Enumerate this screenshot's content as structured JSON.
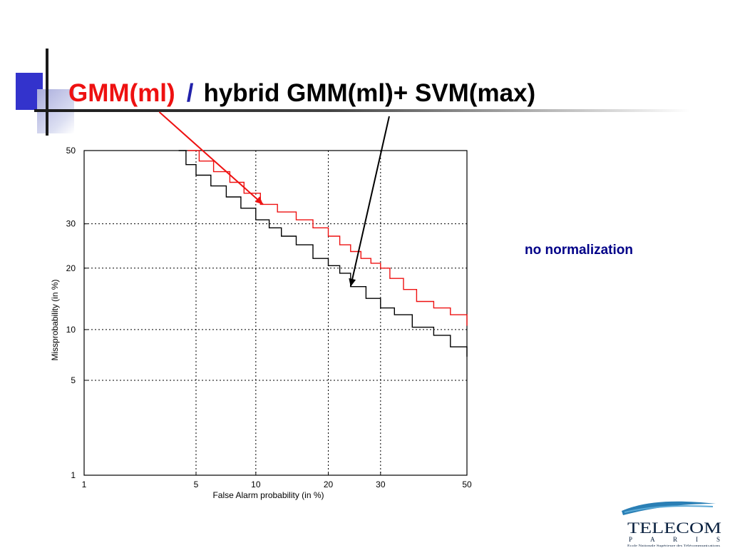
{
  "title": {
    "part1": "GMM(ml)",
    "slash": "/",
    "part2": "hybrid GMM(ml)+ SVM(max)"
  },
  "annotation": "no normalization",
  "colors": {
    "accent_blue": "#3333cc",
    "gmm_red": "#ee1111",
    "hybrid_black": "#000000",
    "note_blue": "#000088"
  },
  "logo": {
    "line1": "TELECOM",
    "line2": "P A R I S",
    "fine_print": "Ecole Nationale Supérieure des Télécommunications"
  },
  "chart_data": {
    "type": "line",
    "title": "",
    "xlabel": "False Alarm probability (in %)",
    "ylabel": "Missprobability (in %)",
    "xscale": "normal-deviate",
    "yscale": "normal-deviate",
    "xlim": [
      1,
      50
    ],
    "ylim": [
      1,
      50
    ],
    "xticks": [
      1,
      5,
      10,
      20,
      30,
      50
    ],
    "yticks": [
      1,
      5,
      10,
      20,
      30,
      50
    ],
    "grid": true,
    "series": [
      {
        "color": "#ee1111",
        "x": [
          4.5,
          5.2,
          6.2,
          7.5,
          8.8,
          10.5,
          12.5,
          15,
          17.5,
          20,
          22,
          24,
          26,
          28,
          30,
          32,
          35,
          38,
          42,
          46,
          50
        ],
        "y": [
          50,
          47,
          44,
          41,
          38,
          35,
          33,
          31,
          29,
          27,
          25,
          23.5,
          22,
          21,
          20,
          18,
          16,
          14,
          13,
          12,
          10.5
        ]
      },
      {
        "color": "#000000",
        "x": [
          4,
          4.4,
          5,
          6,
          7.2,
          8.5,
          10,
          11.5,
          13,
          15,
          17.5,
          20,
          22,
          24,
          27,
          30,
          33,
          37,
          42,
          46,
          50
        ],
        "y": [
          50,
          46,
          43,
          40,
          37,
          34,
          31,
          29,
          27,
          25,
          22,
          20.5,
          19,
          16.5,
          14.5,
          13,
          12,
          10.3,
          9.3,
          8,
          7
        ]
      }
    ],
    "arrows": [
      {
        "target_series": 0,
        "target_xy": [
          10.8,
          35
        ]
      },
      {
        "target_series": 1,
        "target_xy": [
          24,
          16.5
        ]
      }
    ]
  }
}
